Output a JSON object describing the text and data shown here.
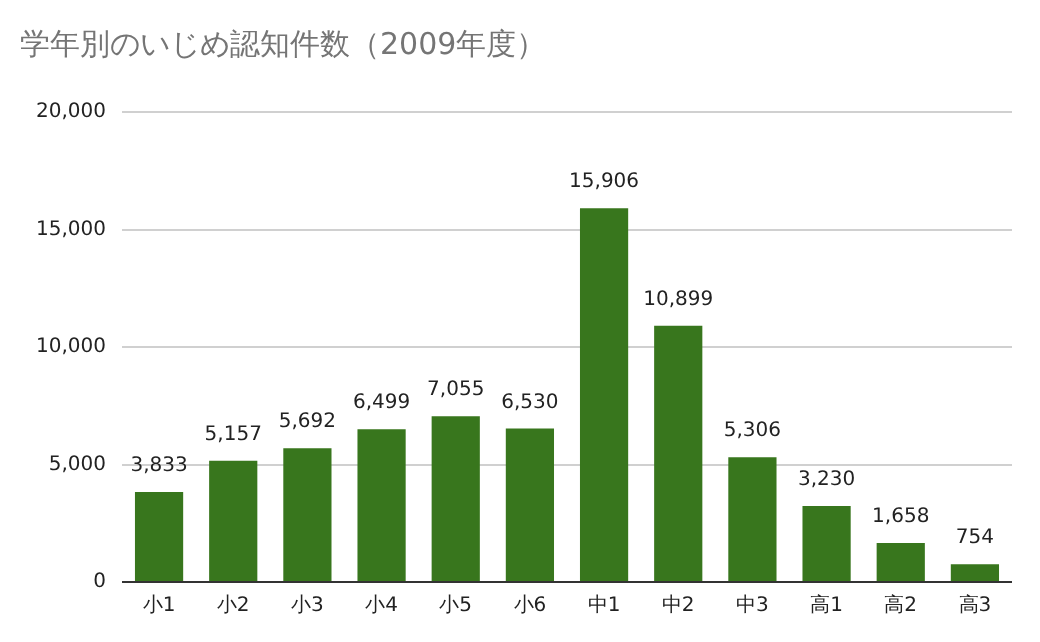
{
  "chart_data": {
    "type": "bar",
    "title": "学年別のいじめ認知件数（2009年度）",
    "categories": [
      "小1",
      "小2",
      "小3",
      "小4",
      "小5",
      "小6",
      "中1",
      "中2",
      "中3",
      "高1",
      "高2",
      "高3"
    ],
    "values": [
      3833,
      5157,
      5692,
      6499,
      7055,
      6530,
      15906,
      10899,
      5306,
      3230,
      1658,
      754
    ],
    "color": "#38761d",
    "ylim": [
      0,
      20000
    ],
    "yticks": [
      {
        "value": 0,
        "label": "0"
      },
      {
        "value": 5000,
        "label": "5,000"
      },
      {
        "value": 10000,
        "label": "10,000"
      },
      {
        "value": 15000,
        "label": "15,000"
      },
      {
        "value": 20000,
        "label": "20,000"
      }
    ],
    "value_labels": [
      "3,833",
      "5,157",
      "5,692",
      "6,499",
      "7,055",
      "6,530",
      "15,906",
      "10,899",
      "5,306",
      "3,230",
      "1,658",
      "754"
    ],
    "grid": "y",
    "legend": false
  }
}
